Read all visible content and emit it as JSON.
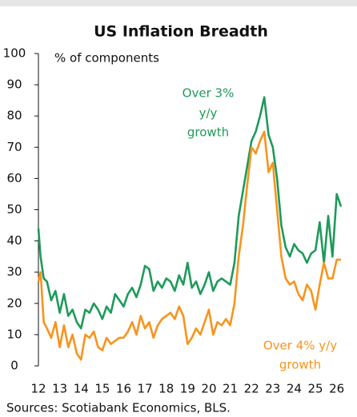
{
  "chart_data": {
    "type": "line",
    "title": "US Inflation Breadth",
    "y_label": "% of components",
    "source": "Sources: Scotiabank Economics, BLS.",
    "annotations": [
      [
        "Over 3%",
        "y/y",
        "growth"
      ],
      [
        "Over 4% y/y",
        "growth"
      ]
    ],
    "x": [
      12.0,
      12.1,
      12.25,
      12.4,
      12.6,
      12.8,
      13.0,
      13.2,
      13.4,
      13.6,
      13.8,
      14.0,
      14.2,
      14.4,
      14.6,
      14.8,
      15.0,
      15.2,
      15.4,
      15.6,
      15.8,
      16.0,
      16.2,
      16.4,
      16.6,
      16.8,
      17.0,
      17.2,
      17.4,
      17.6,
      17.8,
      18.0,
      18.2,
      18.4,
      18.6,
      18.8,
      19.0,
      19.2,
      19.4,
      19.6,
      19.8,
      20.0,
      20.2,
      20.4,
      20.6,
      20.8,
      21.0,
      21.2,
      21.4,
      21.6,
      21.8,
      22.0,
      22.2,
      22.4,
      22.6,
      22.8,
      23.0,
      23.2,
      23.4,
      23.6,
      23.8,
      24.0,
      24.2,
      24.4,
      24.6,
      24.8,
      25.0,
      25.2,
      25.4,
      25.6,
      25.8,
      26.0,
      26.2
    ],
    "series": [
      {
        "name": "Over 3% y/y growth",
        "color": "#1e9a5a",
        "values": [
          44,
          35,
          28,
          27,
          21,
          24,
          17,
          23,
          16,
          18,
          14,
          12,
          18,
          17,
          20,
          18,
          15,
          19,
          17,
          23,
          21,
          19,
          23,
          25,
          22,
          26,
          32,
          31,
          24,
          27,
          25,
          28,
          27,
          24,
          29,
          26,
          33,
          25,
          27,
          23,
          26,
          30,
          24,
          27,
          28,
          27,
          26,
          33,
          48,
          56,
          64,
          72,
          75,
          80,
          86,
          74,
          70,
          60,
          45,
          38,
          35,
          39,
          37,
          36,
          33,
          36,
          37,
          46,
          33,
          48,
          35,
          55,
          51
        ]
      },
      {
        "name": "Over 4% y/y growth",
        "color": "#f7941d",
        "values": [
          27,
          30,
          14,
          12,
          9,
          14,
          6,
          13,
          6,
          10,
          4,
          2,
          10,
          9,
          11,
          6,
          5,
          9,
          7,
          8,
          9,
          9,
          11,
          14,
          10,
          16,
          12,
          14,
          9,
          13,
          15,
          16,
          17,
          15,
          19,
          16,
          7,
          9,
          12,
          10,
          14,
          18,
          10,
          14,
          13,
          15,
          13,
          20,
          35,
          45,
          58,
          70,
          68,
          72,
          75,
          62,
          65,
          50,
          35,
          28,
          26,
          27,
          23,
          21,
          26,
          24,
          18,
          26,
          33,
          28,
          28,
          34,
          34
        ]
      }
    ],
    "xlim": [
      12,
      26.5
    ],
    "xticks": [
      12,
      13,
      14,
      15,
      16,
      17,
      18,
      19,
      20,
      21,
      22,
      23,
      24,
      25,
      26
    ],
    "ylim": [
      0,
      100
    ],
    "yticks": [
      0,
      10,
      20,
      30,
      40,
      50,
      60,
      70,
      80,
      90,
      100
    ],
    "grid": false
  }
}
